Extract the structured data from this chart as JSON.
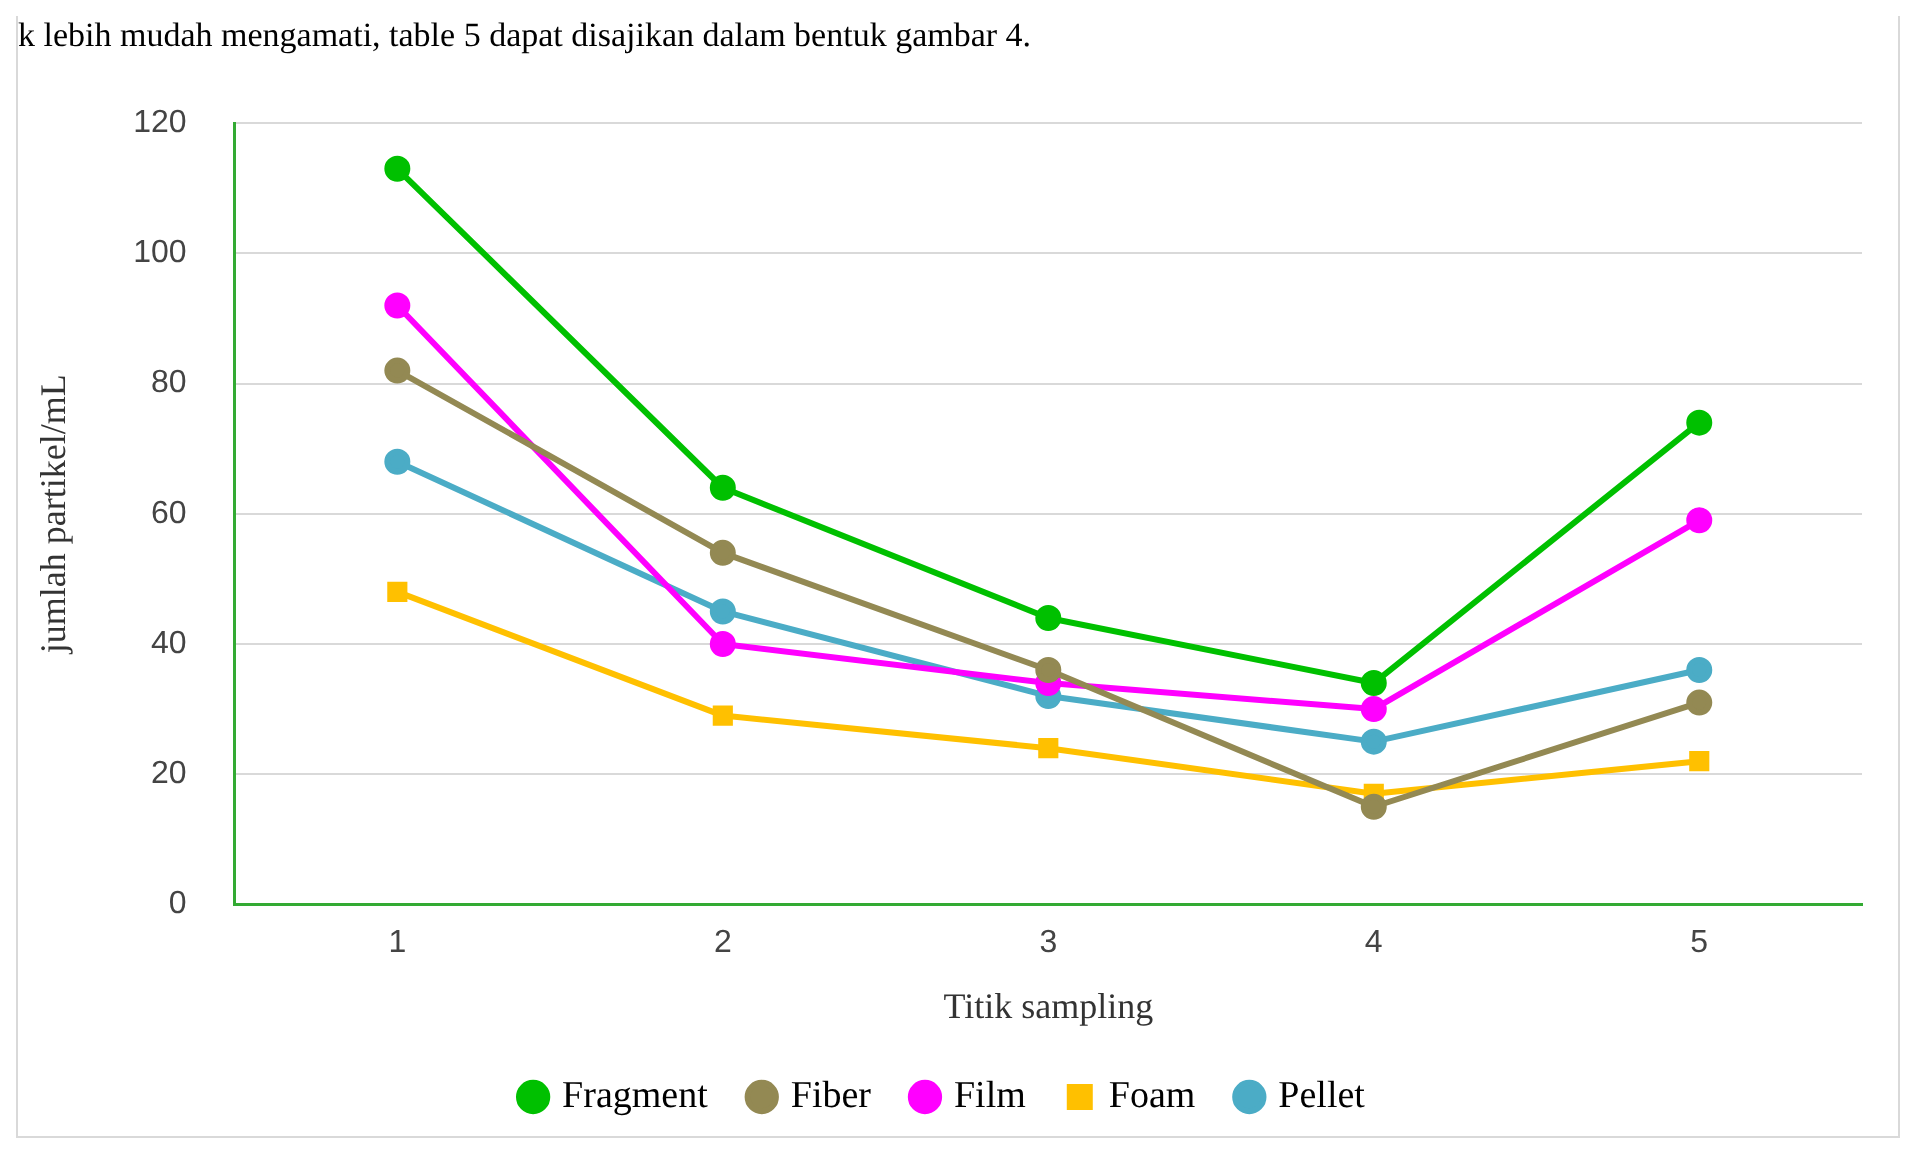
{
  "chart_data": {
    "type": "line",
    "annotations": [
      "k lebih mudah mengamati, table 5 dapat disajikan dalam bentuk gambar 4."
    ],
    "xlabel": "Titik sampling",
    "ylabel": "jumlah partikel/mL",
    "categories": [
      "1",
      "2",
      "3",
      "4",
      "5"
    ],
    "series": [
      {
        "name": "Fragment",
        "color": "#00c000",
        "values": [
          113,
          64,
          44,
          34,
          74
        ]
      },
      {
        "name": "Fiber",
        "color": "#938953",
        "values": [
          82,
          54,
          36,
          15,
          31
        ]
      },
      {
        "name": "Film",
        "color": "#ff00ff",
        "values": [
          92,
          40,
          34,
          30,
          59
        ]
      },
      {
        "name": "Foam",
        "color": "#ffc000",
        "marker": "square",
        "values": [
          48,
          29,
          24,
          17,
          22
        ]
      },
      {
        "name": "Pellet",
        "color": "#4bacc6",
        "values": [
          68,
          45,
          32,
          25,
          36
        ]
      }
    ],
    "ylim": [
      0,
      120
    ],
    "yticks": [
      0,
      20,
      40,
      60,
      80,
      100,
      120
    ],
    "grid": "y",
    "legend": "bottom",
    "marker": "circle",
    "line_style": "solid"
  }
}
